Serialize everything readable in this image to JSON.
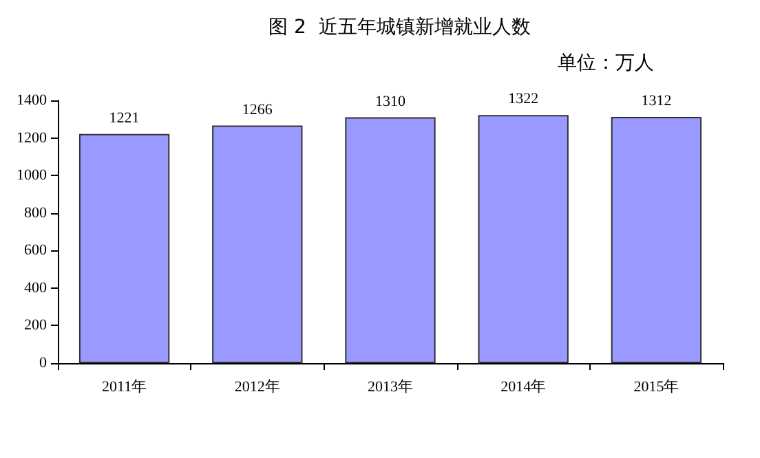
{
  "chart_data": {
    "type": "bar",
    "title": "图 2  近五年城镇新增就业人数",
    "subtitle": "单位：万人",
    "categories": [
      "2011年",
      "2012年",
      "2013年",
      "2014年",
      "2015年"
    ],
    "values": [
      1221,
      1266,
      1310,
      1322,
      1312
    ],
    "color": "#9999ff",
    "ylim": [
      0,
      1400
    ],
    "yticks": [
      0,
      200,
      400,
      600,
      800,
      1000,
      1200,
      1400
    ],
    "grid": false,
    "data_labels": true
  }
}
